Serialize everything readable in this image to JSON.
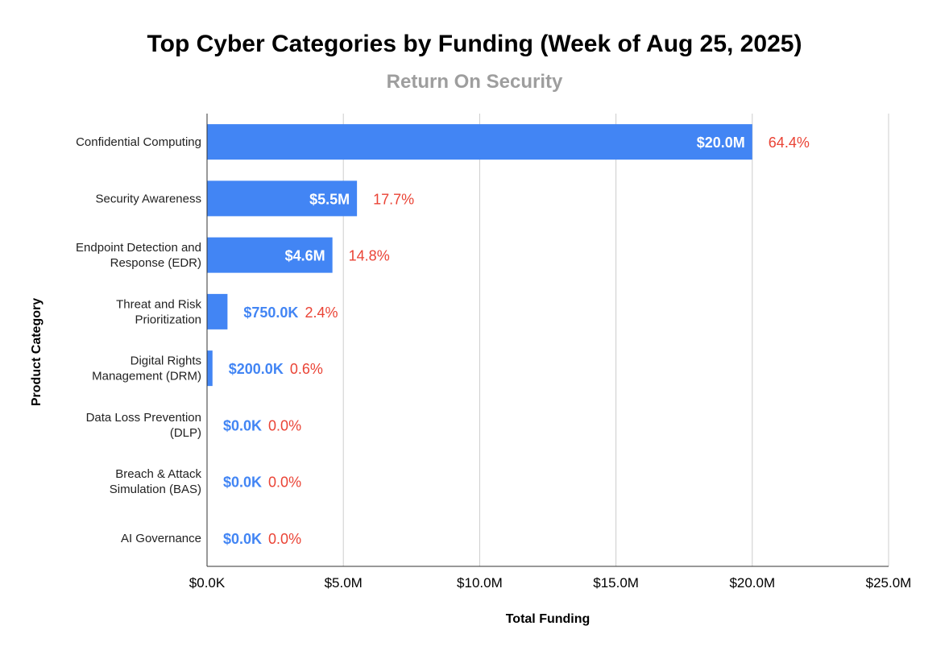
{
  "chart_data": {
    "type": "bar",
    "orientation": "horizontal",
    "title": "Top Cyber Categories by Funding (Week of Aug 25, 2025)",
    "subtitle": "Return On Security",
    "xlabel": "Total Funding",
    "ylabel": "Product Category",
    "xlim": [
      0,
      25
    ],
    "x_unit": "millions USD",
    "xticks": [
      0,
      5,
      10,
      15,
      20,
      25
    ],
    "xtick_labels": [
      "$0.0K",
      "$5.0M",
      "$10.0M",
      "$15.0M",
      "$20.0M",
      "$25.0M"
    ],
    "grid": "vertical",
    "categories": [
      [
        "Confidential Computing"
      ],
      [
        "Security Awareness"
      ],
      [
        "Endpoint Detection and",
        "Response (EDR)"
      ],
      [
        "Threat and Risk",
        "Prioritization"
      ],
      [
        "Digital Rights",
        "Management (DRM)"
      ],
      [
        "Data Loss Prevention",
        "(DLP)"
      ],
      [
        "Breach & Attack",
        "Simulation (BAS)"
      ],
      [
        "AI Governance"
      ]
    ],
    "values": [
      20.0,
      5.5,
      4.6,
      0.75,
      0.2,
      0,
      0,
      0
    ],
    "value_labels": [
      "$20.0M",
      "$5.5M",
      "$4.6M",
      "$750.0K",
      "$200.0K",
      "$0.0K",
      "$0.0K",
      "$0.0K"
    ],
    "percent_labels": [
      "64.4%",
      "17.7%",
      "14.8%",
      "2.4%",
      "0.6%",
      "0.0%",
      "0.0%",
      "0.0%"
    ],
    "colors": {
      "bar": "#4285f4",
      "percent": "#ea4335",
      "grid": "#cccccc",
      "axis": "#333333",
      "subtitle": "#9e9e9e"
    }
  }
}
